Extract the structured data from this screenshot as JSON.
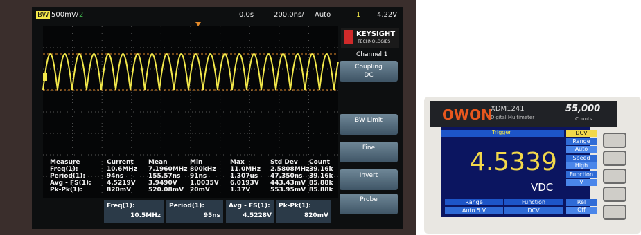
{
  "oscilloscope": {
    "status_bar": {
      "channel_label": "BW",
      "volt_scale": "500mV/",
      "channel_2": "2",
      "time_offset": "0.0s",
      "time_scale": "200.0ns/",
      "trigger_mode": "Auto",
      "trigger_channel": "1",
      "trigger_level": "4.22V"
    },
    "brand": {
      "name": "KEYSIGHT",
      "sub": "TECHNOLOGIES"
    },
    "menu_title": "Channel 1",
    "softkeys": [
      {
        "label": "Coupling",
        "value": "DC"
      },
      {
        "label": "BW Limit"
      },
      {
        "label": "Fine"
      },
      {
        "label": "Invert"
      },
      {
        "label": "Probe"
      }
    ],
    "measurements": {
      "header": [
        "Measure",
        "Current",
        "Mean",
        "Min",
        "Max",
        "Std Dev",
        "Count"
      ],
      "rows": [
        [
          "Freq(1):",
          "10.6MHz",
          "7.1960MHz",
          "800kHz",
          "11.0MHz",
          "2.5808MHz",
          "39.16k"
        ],
        [
          "Period(1):",
          "94ns",
          "155.57ns",
          "91ns",
          "1.307us",
          "47.350ns",
          "39.16k"
        ],
        [
          "Avg - FS(1):",
          "4.5219V",
          "3.9490V",
          "1.0035V",
          "6.0193V",
          "443.43mV",
          "85.88k"
        ],
        [
          "Pk-Pk(1):",
          "820mV",
          "520.08mV",
          "20mV",
          "1.37V",
          "553.95mV",
          "85.88k"
        ]
      ]
    },
    "bottom_bar": [
      {
        "label": "Freq(1):",
        "value": "10.5MHz"
      },
      {
        "label": "Period(1):",
        "value": "95ns"
      },
      {
        "label": "Avg - FS(1):",
        "value": "4.5228V"
      },
      {
        "label": "Pk-Pk(1):",
        "value": "820mV"
      }
    ]
  },
  "multimeter": {
    "brand": "OWON",
    "model": "XDM1241",
    "model_sub": "Digital Multimeter",
    "counts": "55,000",
    "counts_label": "Counts",
    "status": "Trigger",
    "reading": "4.5339",
    "unit": "VDC",
    "footer": [
      {
        "label": "Range",
        "value": "Auto 5 V"
      },
      {
        "label": "Function",
        "value": "DCV"
      }
    ],
    "side_menu": [
      {
        "label": "DCV"
      },
      {
        "label": "Range",
        "value": "Auto"
      },
      {
        "label": "Speed",
        "value": "High"
      },
      {
        "label": "Function",
        "value": "V"
      },
      {
        "label": "Rel",
        "value": "Off"
      }
    ]
  }
}
